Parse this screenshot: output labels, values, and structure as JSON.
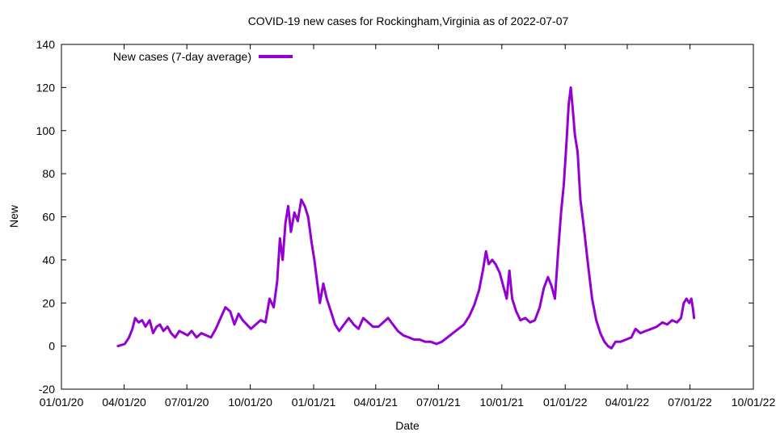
{
  "chart_data": {
    "type": "line",
    "title": "COVID-19 new cases for Rockingham,Virginia as of 2022-07-07",
    "xlabel": "Date",
    "ylabel": "New",
    "ylim": [
      -20,
      140
    ],
    "yticks": [
      -20,
      0,
      20,
      40,
      60,
      80,
      100,
      120,
      140
    ],
    "xlim": [
      "2020-01-01",
      "2022-10-01"
    ],
    "xticks": [
      {
        "date": "2020-01-01",
        "label": "01/01/20"
      },
      {
        "date": "2020-04-01",
        "label": "04/01/20"
      },
      {
        "date": "2020-07-01",
        "label": "07/01/20"
      },
      {
        "date": "2020-10-01",
        "label": "10/01/20"
      },
      {
        "date": "2021-01-01",
        "label": "01/01/21"
      },
      {
        "date": "2021-04-01",
        "label": "04/01/21"
      },
      {
        "date": "2021-07-01",
        "label": "07/01/21"
      },
      {
        "date": "2021-10-01",
        "label": "10/01/21"
      },
      {
        "date": "2022-01-01",
        "label": "01/01/22"
      },
      {
        "date": "2022-04-01",
        "label": "04/01/22"
      },
      {
        "date": "2022-07-01",
        "label": "07/01/22"
      },
      {
        "date": "2022-10-01",
        "label": "10/01/22"
      }
    ],
    "legend_position": "top-left",
    "series": [
      {
        "name": "New cases (7-day average)",
        "color": "#9400d3",
        "points": [
          [
            "2020-03-23",
            0
          ],
          [
            "2020-03-28",
            0.5
          ],
          [
            "2020-04-02",
            1
          ],
          [
            "2020-04-08",
            4
          ],
          [
            "2020-04-13",
            8
          ],
          [
            "2020-04-17",
            13
          ],
          [
            "2020-04-22",
            11
          ],
          [
            "2020-04-27",
            12
          ],
          [
            "2020-05-02",
            9
          ],
          [
            "2020-05-08",
            12
          ],
          [
            "2020-05-13",
            6
          ],
          [
            "2020-05-18",
            9
          ],
          [
            "2020-05-23",
            10
          ],
          [
            "2020-05-28",
            7
          ],
          [
            "2020-06-03",
            9
          ],
          [
            "2020-06-08",
            6
          ],
          [
            "2020-06-14",
            4
          ],
          [
            "2020-06-20",
            7
          ],
          [
            "2020-06-26",
            6
          ],
          [
            "2020-07-02",
            5
          ],
          [
            "2020-07-08",
            7
          ],
          [
            "2020-07-15",
            4
          ],
          [
            "2020-07-22",
            6
          ],
          [
            "2020-07-29",
            5
          ],
          [
            "2020-08-05",
            4
          ],
          [
            "2020-08-12",
            8
          ],
          [
            "2020-08-19",
            13
          ],
          [
            "2020-08-26",
            18
          ],
          [
            "2020-09-02",
            16
          ],
          [
            "2020-09-08",
            10
          ],
          [
            "2020-09-14",
            15
          ],
          [
            "2020-09-20",
            12
          ],
          [
            "2020-09-26",
            10
          ],
          [
            "2020-10-02",
            8
          ],
          [
            "2020-10-09",
            10
          ],
          [
            "2020-10-16",
            12
          ],
          [
            "2020-10-23",
            11
          ],
          [
            "2020-10-29",
            22
          ],
          [
            "2020-11-04",
            18
          ],
          [
            "2020-11-09",
            30
          ],
          [
            "2020-11-13",
            50
          ],
          [
            "2020-11-17",
            40
          ],
          [
            "2020-11-21",
            57
          ],
          [
            "2020-11-25",
            65
          ],
          [
            "2020-11-29",
            53
          ],
          [
            "2020-12-04",
            62
          ],
          [
            "2020-12-09",
            58
          ],
          [
            "2020-12-14",
            68
          ],
          [
            "2020-12-19",
            65
          ],
          [
            "2020-12-24",
            60
          ],
          [
            "2020-12-29",
            48
          ],
          [
            "2021-01-02",
            40
          ],
          [
            "2021-01-06",
            30
          ],
          [
            "2021-01-10",
            20
          ],
          [
            "2021-01-15",
            29
          ],
          [
            "2021-01-20",
            22
          ],
          [
            "2021-01-26",
            16
          ],
          [
            "2021-02-01",
            10
          ],
          [
            "2021-02-07",
            7
          ],
          [
            "2021-02-14",
            10
          ],
          [
            "2021-02-21",
            13
          ],
          [
            "2021-02-28",
            10
          ],
          [
            "2021-03-07",
            8
          ],
          [
            "2021-03-14",
            13
          ],
          [
            "2021-03-21",
            11
          ],
          [
            "2021-03-28",
            9
          ],
          [
            "2021-04-05",
            9
          ],
          [
            "2021-04-12",
            11
          ],
          [
            "2021-04-19",
            13
          ],
          [
            "2021-04-26",
            10
          ],
          [
            "2021-05-03",
            7
          ],
          [
            "2021-05-11",
            5
          ],
          [
            "2021-05-19",
            4
          ],
          [
            "2021-05-27",
            3
          ],
          [
            "2021-06-04",
            3
          ],
          [
            "2021-06-12",
            2
          ],
          [
            "2021-06-20",
            2
          ],
          [
            "2021-06-28",
            1
          ],
          [
            "2021-07-06",
            2
          ],
          [
            "2021-07-14",
            4
          ],
          [
            "2021-07-22",
            6
          ],
          [
            "2021-07-30",
            8
          ],
          [
            "2021-08-07",
            10
          ],
          [
            "2021-08-15",
            14
          ],
          [
            "2021-08-22",
            19
          ],
          [
            "2021-08-29",
            26
          ],
          [
            "2021-09-04",
            36
          ],
          [
            "2021-09-08",
            44
          ],
          [
            "2021-09-12",
            38
          ],
          [
            "2021-09-17",
            40
          ],
          [
            "2021-09-22",
            38
          ],
          [
            "2021-09-28",
            34
          ],
          [
            "2021-10-03",
            28
          ],
          [
            "2021-10-08",
            22
          ],
          [
            "2021-10-12",
            35
          ],
          [
            "2021-10-16",
            22
          ],
          [
            "2021-10-22",
            16
          ],
          [
            "2021-10-28",
            12
          ],
          [
            "2021-11-04",
            13
          ],
          [
            "2021-11-11",
            11
          ],
          [
            "2021-11-18",
            12
          ],
          [
            "2021-11-25",
            18
          ],
          [
            "2021-12-01",
            27
          ],
          [
            "2021-12-07",
            32
          ],
          [
            "2021-12-12",
            28
          ],
          [
            "2021-12-17",
            22
          ],
          [
            "2021-12-22",
            45
          ],
          [
            "2021-12-26",
            62
          ],
          [
            "2021-12-30",
            75
          ],
          [
            "2022-01-03",
            95
          ],
          [
            "2022-01-06",
            112
          ],
          [
            "2022-01-09",
            120
          ],
          [
            "2022-01-12",
            110
          ],
          [
            "2022-01-15",
            98
          ],
          [
            "2022-01-19",
            90
          ],
          [
            "2022-01-23",
            68
          ],
          [
            "2022-01-28",
            55
          ],
          [
            "2022-02-03",
            38
          ],
          [
            "2022-02-09",
            22
          ],
          [
            "2022-02-15",
            12
          ],
          [
            "2022-02-21",
            6
          ],
          [
            "2022-02-27",
            2
          ],
          [
            "2022-03-04",
            0
          ],
          [
            "2022-03-09",
            -1
          ],
          [
            "2022-03-15",
            2
          ],
          [
            "2022-03-22",
            2
          ],
          [
            "2022-03-30",
            3
          ],
          [
            "2022-04-07",
            4
          ],
          [
            "2022-04-13",
            8
          ],
          [
            "2022-04-20",
            6
          ],
          [
            "2022-04-28",
            7
          ],
          [
            "2022-05-06",
            8
          ],
          [
            "2022-05-14",
            9
          ],
          [
            "2022-05-22",
            11
          ],
          [
            "2022-05-29",
            10
          ],
          [
            "2022-06-05",
            12
          ],
          [
            "2022-06-12",
            11
          ],
          [
            "2022-06-18",
            13
          ],
          [
            "2022-06-22",
            20
          ],
          [
            "2022-06-26",
            22
          ],
          [
            "2022-06-30",
            20
          ],
          [
            "2022-07-03",
            22
          ],
          [
            "2022-07-05",
            18
          ],
          [
            "2022-07-07",
            13
          ]
        ]
      }
    ]
  }
}
